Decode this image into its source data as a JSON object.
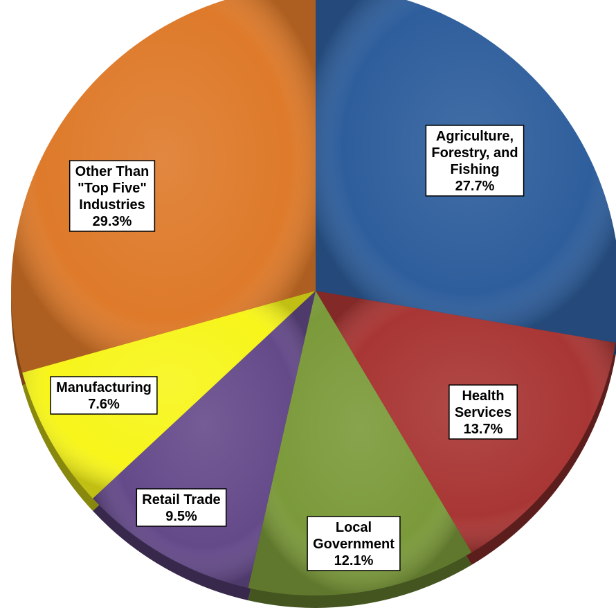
{
  "chart_data": {
    "type": "pie",
    "title": "",
    "start_angle_deg": 0,
    "direction": "clockwise",
    "legend": "none",
    "slices": [
      {
        "label": "Agriculture, Forestry, and Fishing",
        "label_lines": [
          "Agriculture,",
          "Forestry, and",
          "Fishing"
        ],
        "value": 27.7,
        "value_label": "27.7%",
        "color": "#2E5E9C"
      },
      {
        "label": "Health Services",
        "label_lines": [
          "Health",
          "Services"
        ],
        "value": 13.7,
        "value_label": "13.7%",
        "color": "#A83634"
      },
      {
        "label": "Local Government",
        "label_lines": [
          "Local",
          "Government"
        ],
        "value": 12.1,
        "value_label": "12.1%",
        "color": "#7B9A3A"
      },
      {
        "label": "Retail Trade",
        "label_lines": [
          "Retail Trade"
        ],
        "value": 9.5,
        "value_label": "9.5%",
        "color": "#654A8A"
      },
      {
        "label": "Manufacturing",
        "label_lines": [
          "Manufacturing"
        ],
        "value": 7.6,
        "value_label": "7.6%",
        "color": "#F7F51A"
      },
      {
        "label": "Other Than \"Top Five\" Industries",
        "label_lines": [
          "Other Than",
          "\"Top Five\"",
          "Industries"
        ],
        "value": 29.3,
        "value_label": "29.3%",
        "color": "#DE7A2A"
      }
    ]
  }
}
